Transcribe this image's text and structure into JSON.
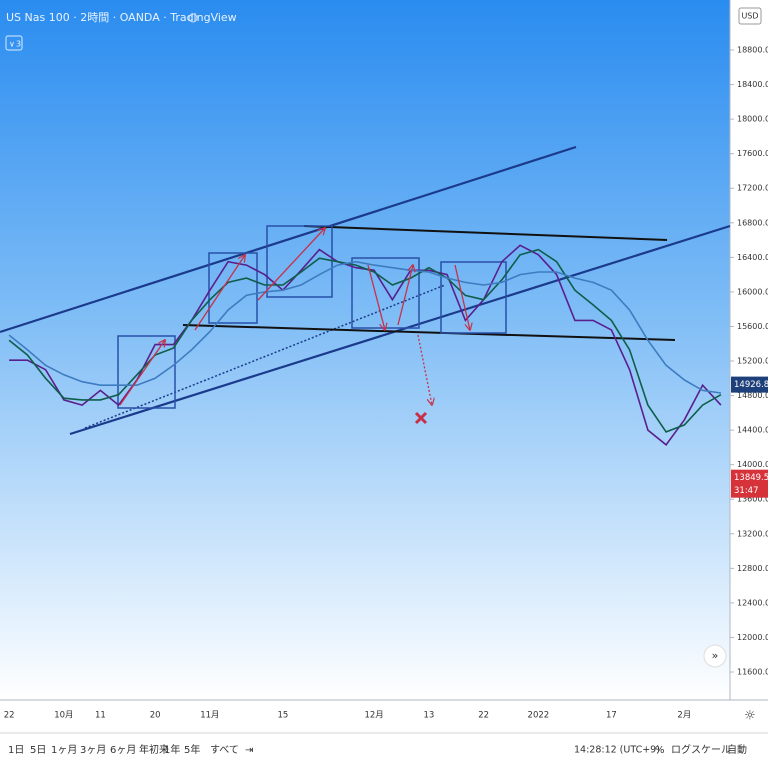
{
  "chart_data": {
    "type": "line",
    "title": "US Nas 100 · 2時間 · OANDA · TradingView",
    "currency": "USD",
    "legend_count": "3",
    "categories": [
      "22",
      null,
      null,
      "10月",
      null,
      "11",
      null,
      null,
      "20",
      null,
      null,
      "11月",
      null,
      null,
      null,
      "15",
      null,
      null,
      null,
      null,
      "12月",
      null,
      null,
      "13",
      null,
      null,
      "22",
      null,
      null,
      "2022",
      null,
      null,
      null,
      "17",
      null,
      null,
      null,
      "2月",
      null,
      null
    ],
    "series": [
      {
        "color": "#5a1f8e",
        "values": [
          15210,
          15210,
          15100,
          14750,
          14690,
          14860,
          14690,
          14980,
          15390,
          15390,
          15670,
          16020,
          16350,
          16310,
          16200,
          16020,
          16250,
          16490,
          16350,
          16280,
          16250,
          15910,
          16250,
          16250,
          16200,
          15670,
          15910,
          16350,
          16540,
          16430,
          16200,
          15670,
          15670,
          15560,
          15100,
          14400,
          14230,
          14520,
          14920,
          14690
        ]
      },
      {
        "color": "#0e5e4a",
        "values": [
          15440,
          15270,
          15000,
          14770,
          14750,
          14750,
          14810,
          15040,
          15270,
          15350,
          15670,
          15910,
          16110,
          16160,
          16080,
          16080,
          16230,
          16390,
          16350,
          16310,
          16230,
          16080,
          16160,
          16280,
          16160,
          15960,
          15910,
          16140,
          16430,
          16490,
          16350,
          16020,
          15850,
          15670,
          15330,
          14690,
          14380,
          14460,
          14690,
          14810
        ]
      },
      {
        "color": "#3d7cc0",
        "values": [
          15500,
          15330,
          15150,
          15040,
          14960,
          14920,
          14920,
          14920,
          15000,
          15150,
          15330,
          15540,
          15790,
          15960,
          16000,
          16020,
          16080,
          16200,
          16310,
          16350,
          16310,
          16280,
          16250,
          16230,
          16160,
          16110,
          16080,
          16110,
          16200,
          16230,
          16230,
          16160,
          16110,
          16020,
          15790,
          15440,
          15150,
          14980,
          14860,
          14830
        ]
      }
    ],
    "ylim": [
      11276,
      19379
    ],
    "yticks": [
      {
        "value": 11600,
        "label": "11600.0"
      },
      {
        "value": 12000,
        "label": "12000.0"
      },
      {
        "value": 12400,
        "label": "12400.0"
      },
      {
        "value": 12800,
        "label": "12800.0"
      },
      {
        "value": 13200,
        "label": "13200.0"
      },
      {
        "value": 13600,
        "label": "13600.0"
      },
      {
        "value": 14000,
        "label": "14000.0"
      },
      {
        "value": 14400,
        "label": "14400.0"
      },
      {
        "value": 14800,
        "label": "14800.0"
      },
      {
        "value": 15200,
        "label": "15200.0"
      },
      {
        "value": 15600,
        "label": "15600.0"
      },
      {
        "value": 16000,
        "label": "16000.0"
      },
      {
        "value": 16400,
        "label": "16400.0"
      },
      {
        "value": 16800,
        "label": "16800.0"
      },
      {
        "value": 17200,
        "label": "17200.0"
      },
      {
        "value": 17600,
        "label": "17600.0"
      },
      {
        "value": 18000,
        "label": "18000.0"
      },
      {
        "value": 18400,
        "label": "18400.0"
      },
      {
        "value": 18800,
        "label": "18800.0"
      }
    ],
    "current_price": 14926.8,
    "countdown_price": 13849.5,
    "countdown": "31:47"
  },
  "toolbar": {
    "ranges": [
      "1日",
      "5日",
      "1ヶ月",
      "3ヶ月",
      "6ヶ月",
      "年初来",
      "1年",
      "5年",
      "すべて"
    ],
    "time": "14:28:12 (UTC+9)",
    "percent": "%",
    "log": "ログスケール",
    "auto": "自動"
  }
}
